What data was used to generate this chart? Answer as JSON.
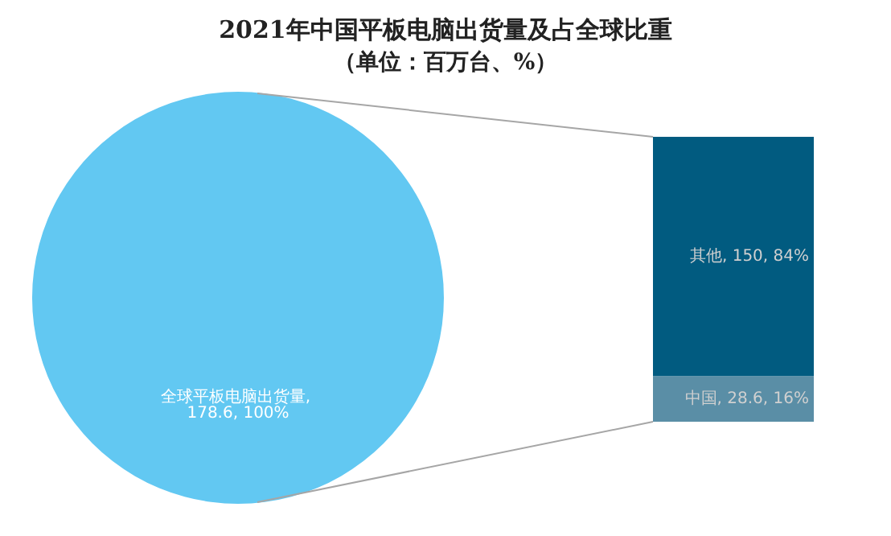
{
  "chart_data": [
    {
      "type": "pie",
      "title": "2021年中国平板电脑出货量及占全球比重",
      "subtitle": "（单位：百万台、%）",
      "categories": [
        null
      ],
      "values": [
        178.6
      ],
      "colors": [
        "#62c8f2"
      ],
      "value_labels": [
        "全球平板电脑出货量, 178.6, 100%"
      ]
    },
    {
      "type": "bar",
      "stacked": true,
      "categories": [
        null
      ],
      "series": [
        {
          "color": "#5a8ea6",
          "values": [
            28.6
          ],
          "value_labels": [
            "中国, 28.6, 16%"
          ]
        },
        {
          "color": "#015b80",
          "values": [
            150
          ],
          "value_labels": [
            "其他, 150, 84%"
          ]
        }
      ]
    }
  ]
}
